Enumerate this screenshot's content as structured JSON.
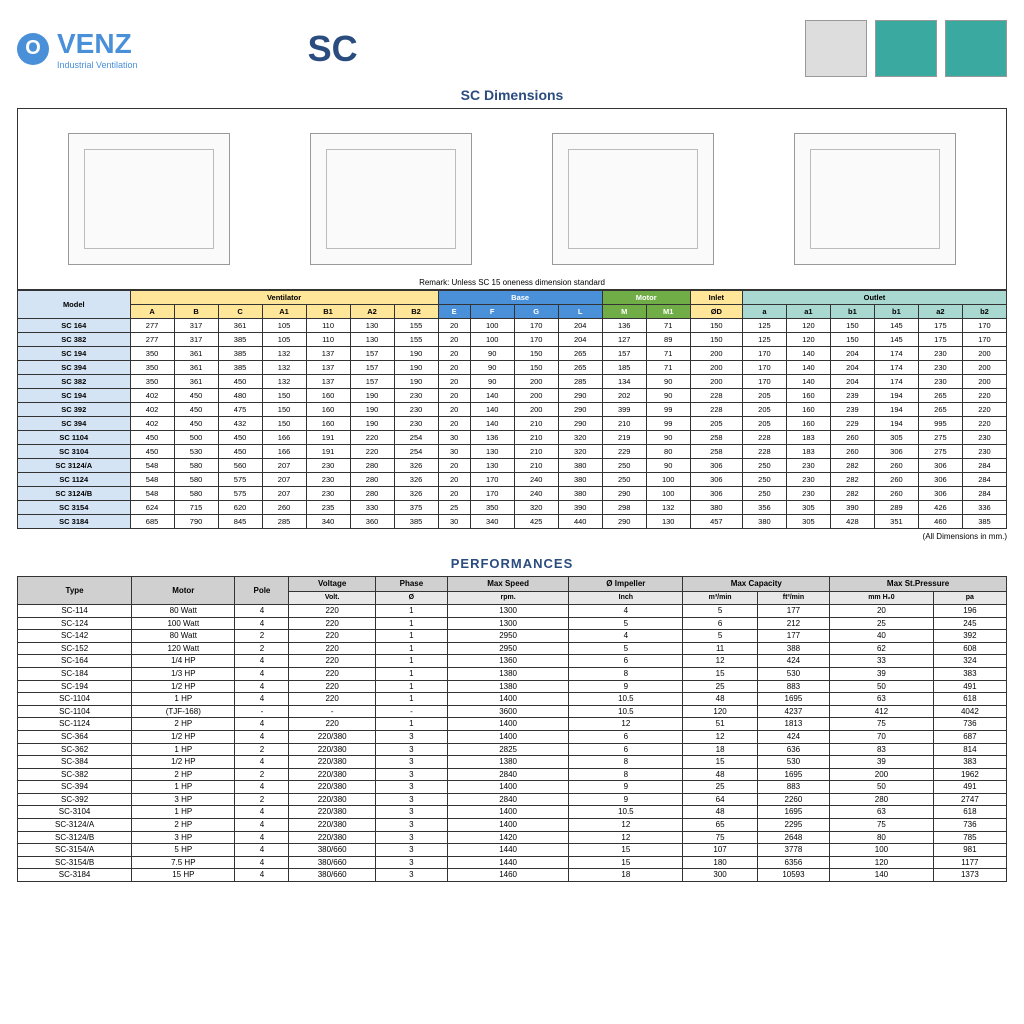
{
  "logo": {
    "name": "VENZ",
    "tagline": "Industrial Ventilation"
  },
  "title": "SC",
  "dim_section_title": "SC Dimensions",
  "remark": "Remark: Unless SC 15 oneness dimension standard",
  "outlet_label": "Outlet",
  "dim_note": "(All Dimensions in mm.)",
  "dim_headers": {
    "model": "Model",
    "ventilator": "Ventilator",
    "base": "Base",
    "motor": "Motor",
    "inlet": "Inlet",
    "outlet": "Outlet",
    "cols": [
      "A",
      "B",
      "C",
      "A1",
      "B1",
      "A2",
      "B2",
      "E",
      "F",
      "G",
      "L",
      "M",
      "M1",
      "ØD",
      "a",
      "a1",
      "b1",
      "b1",
      "a2",
      "b2"
    ]
  },
  "dim_rows": [
    [
      "SC 164",
      "277",
      "317",
      "361",
      "105",
      "110",
      "130",
      "155",
      "20",
      "100",
      "170",
      "204",
      "136",
      "71",
      "150",
      "125",
      "120",
      "150",
      "145",
      "175",
      "170"
    ],
    [
      "SC 382",
      "277",
      "317",
      "385",
      "105",
      "110",
      "130",
      "155",
      "20",
      "100",
      "170",
      "204",
      "127",
      "89",
      "150",
      "125",
      "120",
      "150",
      "145",
      "175",
      "170"
    ],
    [
      "SC 194",
      "350",
      "361",
      "385",
      "132",
      "137",
      "157",
      "190",
      "20",
      "90",
      "150",
      "265",
      "157",
      "71",
      "200",
      "170",
      "140",
      "204",
      "174",
      "230",
      "200"
    ],
    [
      "SC 394",
      "350",
      "361",
      "385",
      "132",
      "137",
      "157",
      "190",
      "20",
      "90",
      "150",
      "265",
      "185",
      "71",
      "200",
      "170",
      "140",
      "204",
      "174",
      "230",
      "200"
    ],
    [
      "SC 382",
      "350",
      "361",
      "450",
      "132",
      "137",
      "157",
      "190",
      "20",
      "90",
      "200",
      "285",
      "134",
      "90",
      "200",
      "170",
      "140",
      "204",
      "174",
      "230",
      "200"
    ],
    [
      "SC 194",
      "402",
      "450",
      "480",
      "150",
      "160",
      "190",
      "230",
      "20",
      "140",
      "200",
      "290",
      "202",
      "90",
      "228",
      "205",
      "160",
      "239",
      "194",
      "265",
      "220"
    ],
    [
      "SC 392",
      "402",
      "450",
      "475",
      "150",
      "160",
      "190",
      "230",
      "20",
      "140",
      "200",
      "290",
      "399",
      "99",
      "228",
      "205",
      "160",
      "239",
      "194",
      "265",
      "220"
    ],
    [
      "SC 394",
      "402",
      "450",
      "432",
      "150",
      "160",
      "190",
      "230",
      "20",
      "140",
      "210",
      "290",
      "210",
      "99",
      "205",
      "205",
      "160",
      "229",
      "194",
      "995",
      "220"
    ],
    [
      "SC 1104",
      "450",
      "500",
      "450",
      "166",
      "191",
      "220",
      "254",
      "30",
      "136",
      "210",
      "320",
      "219",
      "90",
      "258",
      "228",
      "183",
      "260",
      "305",
      "275",
      "230"
    ],
    [
      "SC 3104",
      "450",
      "530",
      "450",
      "166",
      "191",
      "220",
      "254",
      "30",
      "130",
      "210",
      "320",
      "229",
      "80",
      "258",
      "228",
      "183",
      "260",
      "306",
      "275",
      "230"
    ],
    [
      "SC 3124/A",
      "548",
      "580",
      "560",
      "207",
      "230",
      "280",
      "326",
      "20",
      "130",
      "210",
      "380",
      "250",
      "90",
      "306",
      "250",
      "230",
      "282",
      "260",
      "306",
      "284"
    ],
    [
      "SC 1124",
      "548",
      "580",
      "575",
      "207",
      "230",
      "280",
      "326",
      "20",
      "170",
      "240",
      "380",
      "250",
      "100",
      "306",
      "250",
      "230",
      "282",
      "260",
      "306",
      "284"
    ],
    [
      "SC 3124/B",
      "548",
      "580",
      "575",
      "207",
      "230",
      "280",
      "326",
      "20",
      "170",
      "240",
      "380",
      "290",
      "100",
      "306",
      "250",
      "230",
      "282",
      "260",
      "306",
      "284"
    ],
    [
      "SC 3154",
      "624",
      "715",
      "620",
      "260",
      "235",
      "330",
      "375",
      "25",
      "350",
      "320",
      "390",
      "298",
      "132",
      "380",
      "356",
      "305",
      "390",
      "289",
      "426",
      "336"
    ],
    [
      "SC 3184",
      "685",
      "790",
      "845",
      "285",
      "340",
      "360",
      "385",
      "30",
      "340",
      "425",
      "440",
      "290",
      "130",
      "457",
      "380",
      "305",
      "428",
      "351",
      "460",
      "385"
    ]
  ],
  "perf_title": "PERFORMANCES",
  "perf_headers": [
    "Type",
    "Motor",
    "Pole",
    "Voltage",
    "Phase",
    "Max Speed",
    "Ø Impeller",
    "Max Capacity",
    "Max St.Pressure"
  ],
  "perf_sub": [
    "",
    "",
    "",
    "Volt.",
    "Ø",
    "rpm.",
    "Inch",
    "m³/min",
    "ft³/min",
    "mm H₂0",
    "pa"
  ],
  "perf_rows": [
    [
      "SC-114",
      "80 Watt",
      "4",
      "220",
      "1",
      "1300",
      "4",
      "5",
      "177",
      "20",
      "196"
    ],
    [
      "SC-124",
      "100 Watt",
      "4",
      "220",
      "1",
      "1300",
      "5",
      "6",
      "212",
      "25",
      "245"
    ],
    [
      "SC-142",
      "80 Watt",
      "2",
      "220",
      "1",
      "2950",
      "4",
      "5",
      "177",
      "40",
      "392"
    ],
    [
      "SC-152",
      "120 Watt",
      "2",
      "220",
      "1",
      "2950",
      "5",
      "11",
      "388",
      "62",
      "608"
    ],
    [
      "SC-164",
      "1/4 HP",
      "4",
      "220",
      "1",
      "1360",
      "6",
      "12",
      "424",
      "33",
      "324"
    ],
    [
      "SC-184",
      "1/3 HP",
      "4",
      "220",
      "1",
      "1380",
      "8",
      "15",
      "530",
      "39",
      "383"
    ],
    [
      "SC-194",
      "1/2 HP",
      "4",
      "220",
      "1",
      "1380",
      "9",
      "25",
      "883",
      "50",
      "491"
    ],
    [
      "SC-1104",
      "1 HP",
      "4",
      "220",
      "1",
      "1400",
      "10.5",
      "48",
      "1695",
      "63",
      "618"
    ],
    [
      "SC-1104",
      "(TJF-168)",
      "-",
      "-",
      "-",
      "3600",
      "10.5",
      "120",
      "4237",
      "412",
      "4042"
    ],
    [
      "SC-1124",
      "2 HP",
      "4",
      "220",
      "1",
      "1400",
      "12",
      "51",
      "1813",
      "75",
      "736"
    ],
    [
      "SC-364",
      "1/2 HP",
      "4",
      "220/380",
      "3",
      "1400",
      "6",
      "12",
      "424",
      "70",
      "687"
    ],
    [
      "SC-362",
      "1 HP",
      "2",
      "220/380",
      "3",
      "2825",
      "6",
      "18",
      "636",
      "83",
      "814"
    ],
    [
      "SC-384",
      "1/2 HP",
      "4",
      "220/380",
      "3",
      "1380",
      "8",
      "15",
      "530",
      "39",
      "383"
    ],
    [
      "SC-382",
      "2 HP",
      "2",
      "220/380",
      "3",
      "2840",
      "8",
      "48",
      "1695",
      "200",
      "1962"
    ],
    [
      "SC-394",
      "1 HP",
      "4",
      "220/380",
      "3",
      "1400",
      "9",
      "25",
      "883",
      "50",
      "491"
    ],
    [
      "SC-392",
      "3 HP",
      "2",
      "220/380",
      "3",
      "2840",
      "9",
      "64",
      "2260",
      "280",
      "2747"
    ],
    [
      "SC-3104",
      "1 HP",
      "4",
      "220/380",
      "3",
      "1400",
      "10.5",
      "48",
      "1695",
      "63",
      "618"
    ],
    [
      "SC-3124/A",
      "2 HP",
      "4",
      "220/380",
      "3",
      "1400",
      "12",
      "65",
      "2295",
      "75",
      "736"
    ],
    [
      "SC-3124/B",
      "3 HP",
      "4",
      "220/380",
      "3",
      "1420",
      "12",
      "75",
      "2648",
      "80",
      "785"
    ],
    [
      "SC-3154/A",
      "5 HP",
      "4",
      "380/660",
      "3",
      "1440",
      "15",
      "107",
      "3778",
      "100",
      "981"
    ],
    [
      "SC-3154/B",
      "7.5 HP",
      "4",
      "380/660",
      "3",
      "1440",
      "15",
      "180",
      "6356",
      "120",
      "1177"
    ],
    [
      "SC-3184",
      "15 HP",
      "4",
      "380/660",
      "3",
      "1460",
      "18",
      "300",
      "10593",
      "140",
      "1373"
    ]
  ]
}
